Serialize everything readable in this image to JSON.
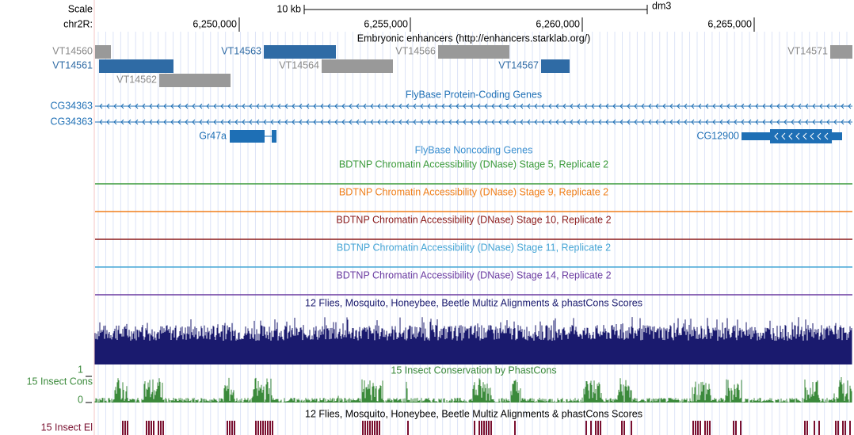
{
  "scale": {
    "label": "Scale",
    "length": "10 kb",
    "assembly": "dm3"
  },
  "ruler": {
    "chrom": "chr2R:",
    "ticks": [
      "6,250,000",
      "6,255,000",
      "6,260,000",
      "6,265,000"
    ]
  },
  "tracks": {
    "enhancers": {
      "title": "Embryonic enhancers (http://enhancers.starklab.org/)",
      "items": [
        "VT14560",
        "VT14561",
        "VT14562",
        "VT14563",
        "VT14564",
        "VT14566",
        "VT14567",
        "VT14571"
      ]
    },
    "coding": {
      "title": "FlyBase Protein-Coding Genes",
      "genes": [
        "CG34363",
        "CG34363",
        "Gr47a",
        "CG12900"
      ]
    },
    "noncoding": {
      "title": "FlyBase Noncoding Genes"
    },
    "dnase": [
      "BDTNP Chromatin Accessibility (DNase) Stage 5, Replicate 2",
      "BDTNP Chromatin Accessibility (DNase) Stage 9, Replicate 2",
      "BDTNP Chromatin Accessibility (DNase) Stage 10, Replicate 2",
      "BDTNP Chromatin Accessibility (DNase) Stage 11, Replicate 2",
      "BDTNP Chromatin Accessibility (DNase) Stage 14, Replicate 2"
    ],
    "multiz": {
      "title": "12 Flies, Mosquito, Honeybee, Beetle Multiz Alignments & phastCons Scores"
    },
    "cons": {
      "title": "15 Insect Conservation by PhastCons",
      "label": "15 Insect Cons",
      "ymax": "1",
      "ymin": "0"
    },
    "elements": {
      "title": "12 Flies, Mosquito, Honeybee, Beetle Multiz Alignments & phastCons Scores",
      "label": "15 Insect El"
    }
  }
}
